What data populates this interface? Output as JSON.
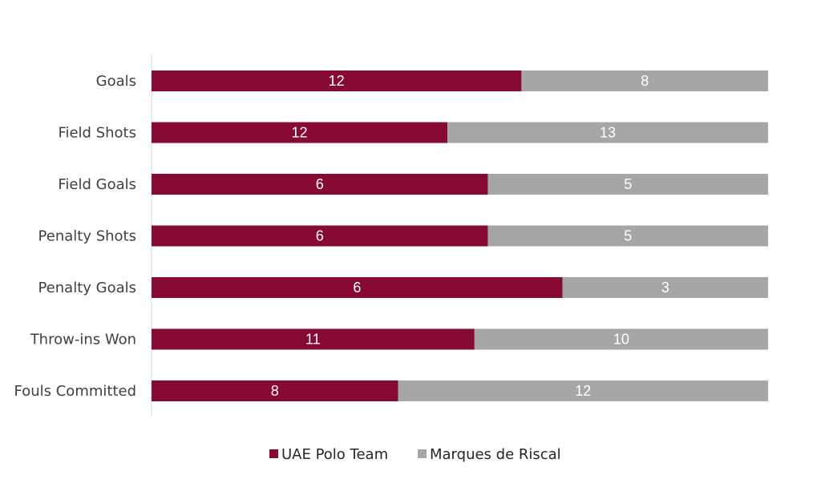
{
  "chart_data": {
    "type": "bar",
    "orientation": "horizontal",
    "stacking": "percent",
    "categories": [
      "Goals",
      "Field Shots",
      "Field Goals",
      "Penalty Shots",
      "Penalty Goals",
      "Throw-ins Won",
      "Fouls Committed"
    ],
    "series": [
      {
        "name": "UAE Polo Team",
        "values": [
          12,
          12,
          6,
          6,
          6,
          11,
          8
        ],
        "color": "#870A36"
      },
      {
        "name": "Marques de Riscal",
        "values": [
          8,
          13,
          5,
          5,
          3,
          10,
          12
        ],
        "color": "#A6A6A6"
      }
    ],
    "title": "",
    "xlabel": "",
    "ylabel": "",
    "grid": false,
    "legend_position": "bottom"
  }
}
